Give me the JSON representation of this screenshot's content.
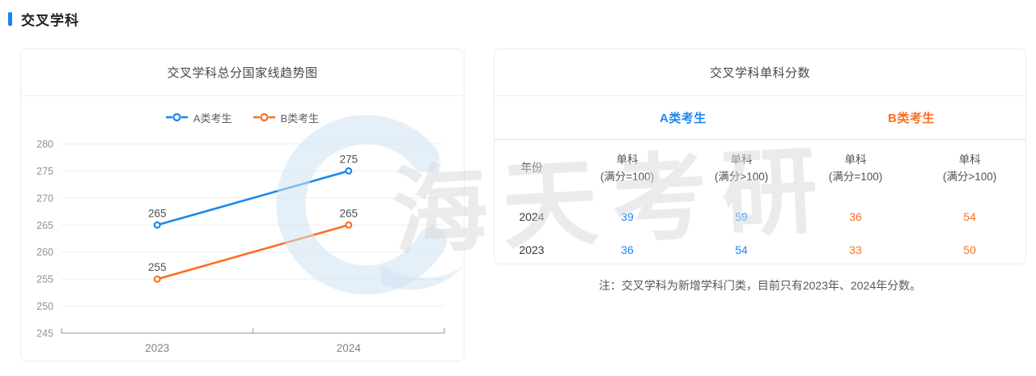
{
  "page": {
    "section_title": "交叉学科"
  },
  "trend_card": {
    "title": "交叉学科总分国家线趋势图"
  },
  "chart_data": {
    "type": "line",
    "title": "交叉学科总分国家线趋势图",
    "categories": [
      "2023",
      "2024"
    ],
    "series": [
      {
        "name": "A类考生",
        "color": "#1f86f2",
        "values": [
          265,
          275
        ]
      },
      {
        "name": "B类考生",
        "color": "#fb6f23",
        "values": [
          255,
          265
        ]
      }
    ],
    "ylim": [
      245,
      280
    ],
    "ytick_step": 5,
    "grid": true,
    "legend_position": "top",
    "point_labels": true,
    "xlabel": "",
    "ylabel": ""
  },
  "score_card": {
    "title": "交叉学科单科分数",
    "group_headers": [
      {
        "label": "A类考生"
      },
      {
        "label": "B类考生"
      }
    ],
    "columns": [
      {
        "line1": "年份",
        "line2": ""
      },
      {
        "line1": "单科",
        "line2": "(满分=100)"
      },
      {
        "line1": "单科",
        "line2": "(满分>100)"
      },
      {
        "line1": "单科",
        "line2": "(满分=100)"
      },
      {
        "line1": "单科",
        "line2": "(满分>100)"
      }
    ],
    "rows": [
      {
        "year": "2024",
        "values": [
          "39",
          "59",
          "36",
          "54"
        ]
      },
      {
        "year": "2023",
        "values": [
          "36",
          "54",
          "33",
          "50"
        ]
      }
    ],
    "note": "注：交叉学科为新增学科门类，目前只有2023年、2024年分数。"
  },
  "watermark": {
    "text": "海天考研"
  },
  "colors": {
    "accent_blue": "#1f86f2",
    "accent_orange": "#fb6f23",
    "header_bar_blue": "#1585f5",
    "gridline": "#e9edf3",
    "axis_line": "#a6abb3",
    "watermark_blue": "#cfe2f3",
    "watermark_gray": "#d6d8da"
  }
}
